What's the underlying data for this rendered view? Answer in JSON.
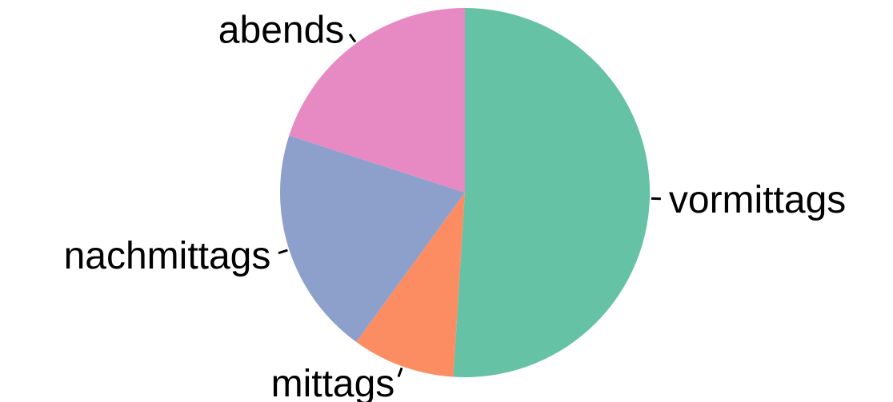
{
  "chart_data": {
    "type": "pie",
    "title": "",
    "slices": [
      {
        "label": "vormittags",
        "value": 51,
        "color": "#66c2a5"
      },
      {
        "label": "mittags",
        "value": 9,
        "color": "#fc8d62"
      },
      {
        "label": "nachmittags",
        "value": 20,
        "color": "#8da0cb"
      },
      {
        "label": "abends",
        "value": 20,
        "color": "#e78ac3"
      }
    ],
    "start": "top",
    "direction": "clockwise",
    "legend": "none"
  }
}
